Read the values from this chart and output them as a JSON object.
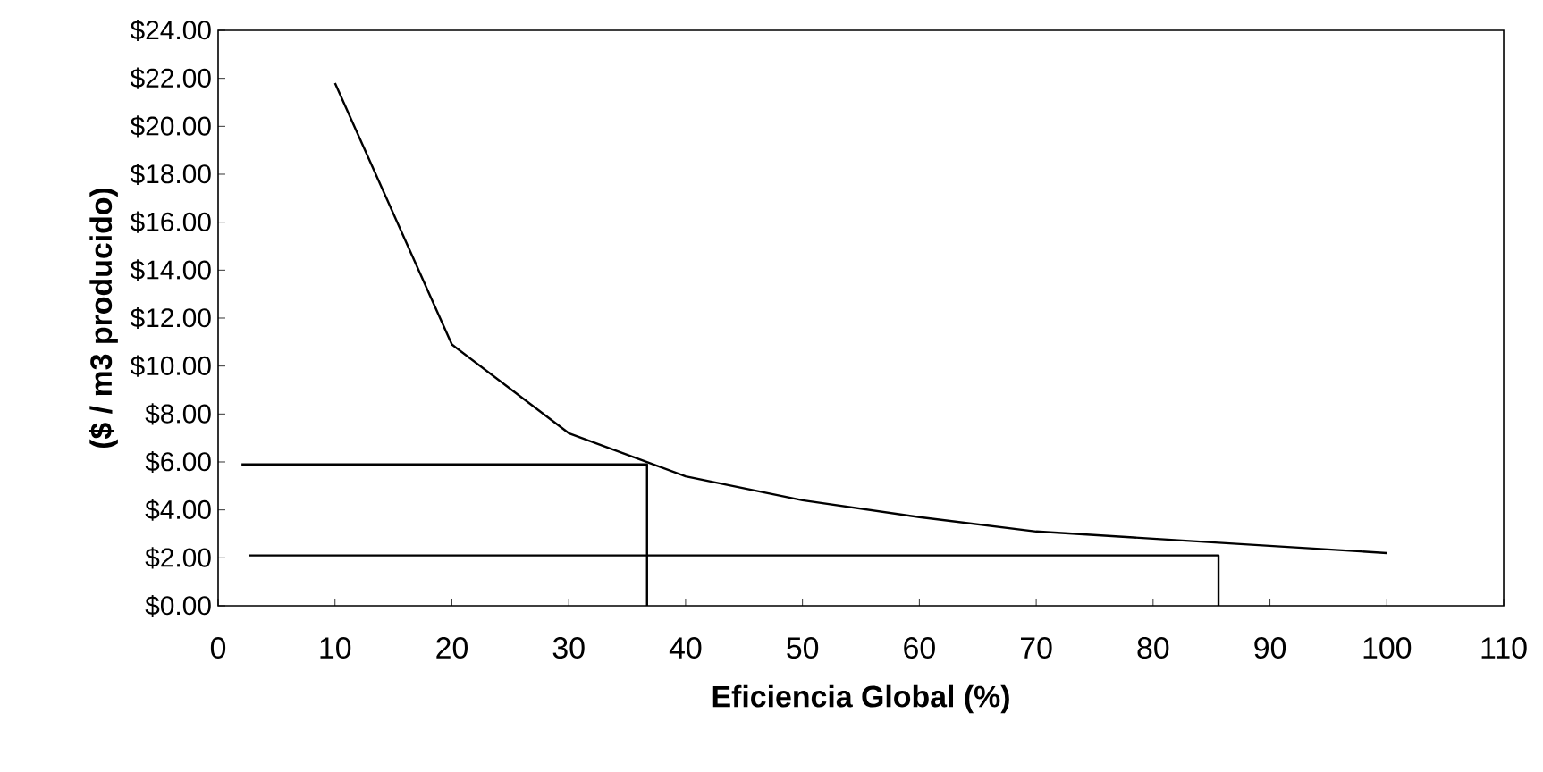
{
  "chart_data": {
    "type": "line",
    "xlabel": "Eficiencia Global (%)",
    "ylabel": "($ / m3 producido)",
    "xlim": [
      0,
      110
    ],
    "xticks": [
      0,
      10,
      20,
      30,
      40,
      50,
      60,
      70,
      80,
      90,
      100,
      110
    ],
    "ylim": [
      0,
      24
    ],
    "yticks": [
      {
        "value": 0,
        "label": "$0.00"
      },
      {
        "value": 2,
        "label": "$2.00"
      },
      {
        "value": 4,
        "label": "$4.00"
      },
      {
        "value": 6,
        "label": "$6.00"
      },
      {
        "value": 8,
        "label": "$8.00"
      },
      {
        "value": 10,
        "label": "$10.00"
      },
      {
        "value": 12,
        "label": "$12.00"
      },
      {
        "value": 14,
        "label": "$14.00"
      },
      {
        "value": 16,
        "label": "$16.00"
      },
      {
        "value": 18,
        "label": "$18.00"
      },
      {
        "value": 20,
        "label": "$20.00"
      },
      {
        "value": 22,
        "label": "$22.00"
      },
      {
        "value": 24,
        "label": "$24.00"
      }
    ],
    "grid": false,
    "marker": "none",
    "line_style": "solid",
    "series": [
      {
        "color": "#000000",
        "x": [
          10,
          20,
          30,
          40,
          50,
          60,
          70,
          80,
          90,
          100
        ],
        "values": [
          21.8,
          10.9,
          7.2,
          5.4,
          4.4,
          3.7,
          3.1,
          2.8,
          2.5,
          2.2
        ]
      },
      {
        "color": "#000000",
        "x": [
          2,
          36.7,
          36.7
        ],
        "values": [
          5.9,
          5.9,
          0
        ]
      },
      {
        "color": "#000000",
        "x": [
          2.6,
          85.6,
          85.6
        ],
        "values": [
          2.1,
          2.1,
          0
        ]
      }
    ]
  }
}
